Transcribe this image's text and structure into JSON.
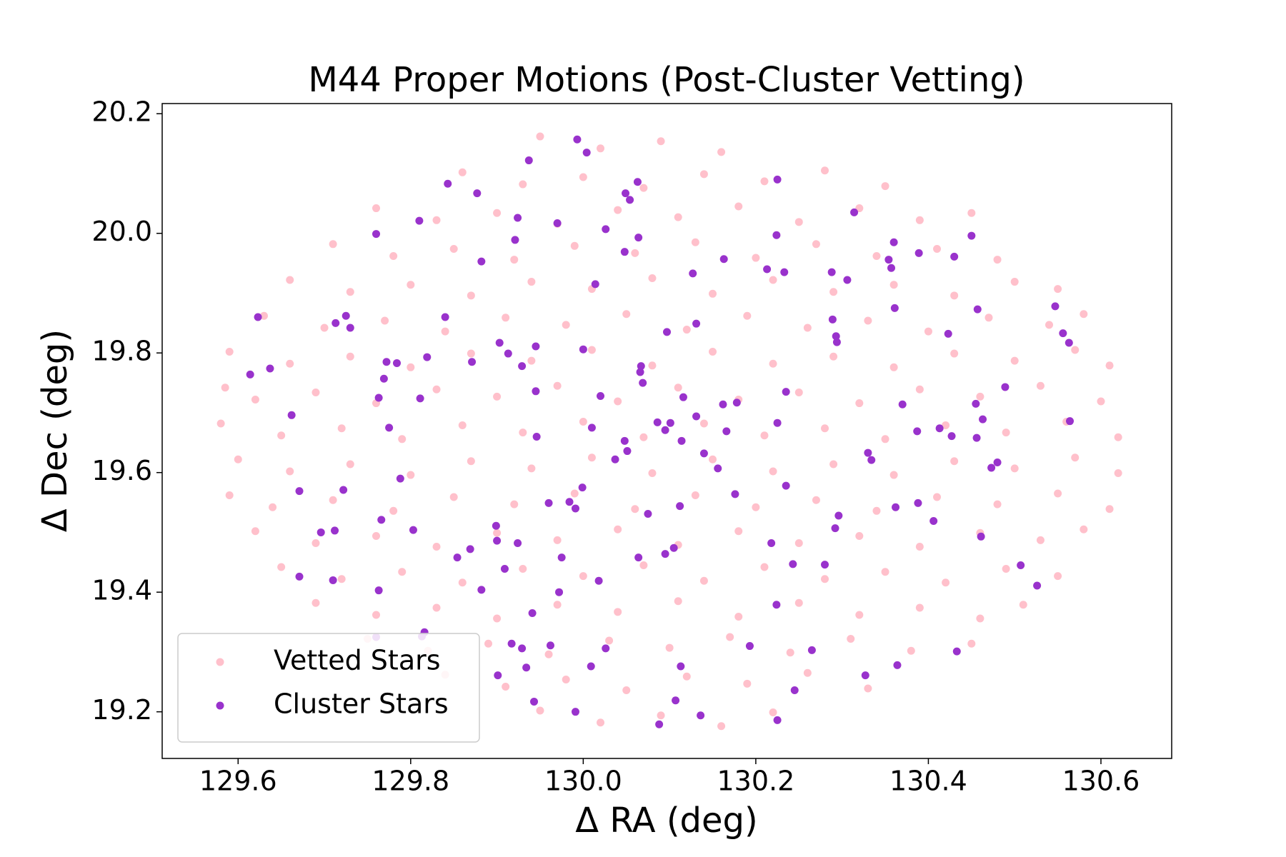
{
  "chart_data": {
    "type": "scatter",
    "title": "M44 Proper Motions (Post-Cluster Vetting)",
    "xlabel": "Δ RA (deg)",
    "ylabel": "Δ Dec (deg)",
    "xlim": [
      129.512,
      130.682
    ],
    "ylim": [
      19.122,
      20.217
    ],
    "xticks": [
      129.6,
      129.8,
      {
        "value": 130,
        "label": "130.0"
      },
      130.2,
      130.4,
      130.6
    ],
    "yticks": [
      19.2,
      19.4,
      19.6,
      19.8,
      {
        "value": 20,
        "label": "20.0"
      },
      20.2
    ],
    "legend": "lower left",
    "grid": false,
    "series": [
      {
        "name": "Vetted Stars",
        "color": "#ffc0cb",
        "x": [
          129.95,
          130.02,
          130.09,
          130.16,
          129.86,
          129.93,
          130.0,
          130.07,
          130.14,
          130.21,
          130.28,
          130.35,
          129.76,
          129.83,
          129.9,
          129.97,
          130.04,
          130.11,
          130.18,
          130.25,
          130.32,
          130.39,
          130.45,
          129.71,
          129.78,
          129.85,
          129.92,
          129.99,
          130.06,
          130.13,
          130.2,
          130.27,
          130.34,
          130.41,
          130.48,
          129.66,
          129.73,
          129.8,
          129.87,
          129.94,
          130.01,
          130.08,
          130.15,
          130.22,
          130.29,
          130.36,
          130.43,
          130.5,
          130.55,
          129.63,
          129.7,
          129.77,
          129.84,
          129.91,
          129.98,
          130.05,
          130.12,
          130.19,
          130.26,
          130.33,
          130.4,
          130.47,
          130.54,
          130.58,
          129.59,
          129.66,
          129.73,
          129.8,
          129.87,
          129.94,
          130.01,
          130.08,
          130.15,
          130.22,
          130.29,
          130.36,
          130.43,
          130.5,
          130.57,
          130.61,
          129.585,
          129.62,
          129.69,
          129.76,
          129.83,
          129.9,
          129.97,
          130.04,
          130.11,
          130.18,
          130.25,
          130.32,
          130.39,
          130.46,
          130.53,
          130.6,
          129.58,
          129.65,
          129.72,
          129.79,
          129.86,
          129.93,
          130.0,
          130.07,
          130.14,
          130.21,
          130.28,
          130.35,
          130.42,
          130.49,
          130.56,
          130.62,
          129.6,
          129.66,
          129.73,
          129.8,
          129.87,
          129.94,
          130.01,
          130.08,
          130.15,
          130.22,
          130.29,
          130.36,
          130.43,
          130.5,
          130.57,
          130.62,
          129.59,
          129.64,
          129.71,
          129.78,
          129.85,
          129.92,
          129.99,
          130.06,
          130.13,
          130.2,
          130.27,
          130.34,
          130.41,
          130.48,
          130.55,
          130.61,
          129.62,
          129.69,
          129.76,
          129.83,
          129.9,
          129.97,
          130.04,
          130.11,
          130.18,
          130.25,
          130.32,
          130.39,
          130.46,
          130.53,
          130.58,
          129.65,
          129.72,
          129.79,
          129.86,
          129.93,
          130.0,
          130.07,
          130.14,
          130.21,
          130.28,
          130.35,
          130.42,
          130.49,
          130.55,
          129.69,
          129.76,
          129.83,
          129.9,
          129.97,
          130.04,
          130.11,
          130.18,
          130.25,
          130.32,
          130.39,
          130.46,
          130.51,
          129.75,
          129.82,
          129.89,
          129.96,
          130.03,
          130.1,
          130.17,
          130.24,
          130.31,
          130.38,
          130.45,
          129.84,
          129.91,
          129.98,
          130.05,
          130.12,
          130.19,
          130.26,
          130.33,
          129.95,
          130.02,
          130.09,
          130.16,
          130.22
        ],
        "y": [
          20.162,
          20.142,
          20.154,
          20.136,
          20.102,
          20.082,
          20.094,
          20.076,
          20.099,
          20.087,
          20.105,
          20.079,
          20.042,
          20.022,
          20.034,
          20.016,
          20.039,
          20.027,
          20.045,
          20.019,
          20.042,
          20.022,
          20.034,
          19.982,
          19.962,
          19.974,
          19.956,
          19.979,
          19.967,
          19.985,
          19.959,
          19.982,
          19.962,
          19.974,
          19.956,
          19.922,
          19.902,
          19.914,
          19.896,
          19.919,
          19.907,
          19.925,
          19.899,
          19.922,
          19.902,
          19.914,
          19.896,
          19.919,
          19.907,
          19.862,
          19.842,
          19.854,
          19.836,
          19.859,
          19.847,
          19.865,
          19.839,
          19.862,
          19.842,
          19.854,
          19.836,
          19.859,
          19.847,
          19.865,
          19.802,
          19.782,
          19.794,
          19.776,
          19.799,
          19.787,
          19.805,
          19.779,
          19.802,
          19.782,
          19.794,
          19.776,
          19.799,
          19.787,
          19.805,
          19.779,
          19.742,
          19.722,
          19.734,
          19.716,
          19.739,
          19.727,
          19.745,
          19.719,
          19.742,
          19.722,
          19.734,
          19.716,
          19.739,
          19.727,
          19.745,
          19.719,
          19.682,
          19.662,
          19.674,
          19.656,
          19.679,
          19.667,
          19.685,
          19.659,
          19.682,
          19.662,
          19.674,
          19.656,
          19.679,
          19.667,
          19.685,
          19.659,
          19.622,
          19.602,
          19.614,
          19.596,
          19.619,
          19.607,
          19.625,
          19.599,
          19.622,
          19.602,
          19.614,
          19.596,
          19.619,
          19.607,
          19.625,
          19.599,
          19.562,
          19.542,
          19.554,
          19.536,
          19.559,
          19.547,
          19.565,
          19.539,
          19.562,
          19.542,
          19.554,
          19.536,
          19.559,
          19.547,
          19.565,
          19.539,
          19.502,
          19.482,
          19.494,
          19.476,
          19.499,
          19.487,
          19.505,
          19.479,
          19.502,
          19.482,
          19.494,
          19.476,
          19.499,
          19.487,
          19.505,
          19.442,
          19.422,
          19.434,
          19.416,
          19.439,
          19.427,
          19.445,
          19.419,
          19.442,
          19.422,
          19.434,
          19.416,
          19.439,
          19.427,
          19.382,
          19.362,
          19.374,
          19.356,
          19.379,
          19.367,
          19.385,
          19.359,
          19.382,
          19.362,
          19.374,
          19.356,
          19.379,
          19.322,
          19.302,
          19.314,
          19.296,
          19.319,
          19.307,
          19.325,
          19.299,
          19.322,
          19.302,
          19.314,
          19.262,
          19.242,
          19.254,
          19.236,
          19.259,
          19.247,
          19.265,
          19.239,
          19.202,
          19.182,
          19.194,
          19.176,
          19.199
        ]
      },
      {
        "name": "Cluster Stars",
        "color": "#9932cc",
        "x": [
          129.993,
          130.004,
          129.937,
          130.063,
          130.225,
          129.843,
          129.877,
          130.049,
          130.054,
          129.924,
          130.314,
          129.81,
          129.97,
          130.026,
          129.76,
          130.064,
          130.224,
          130.45,
          130.36,
          129.921,
          129.882,
          130.048,
          130.389,
          130.43,
          130.354,
          130.163,
          130.127,
          130.213,
          130.233,
          130.288,
          130.357,
          130.014,
          130.306,
          129.623,
          129.725,
          129.713,
          129.73,
          129.84,
          130.131,
          130.289,
          130.361,
          130.547,
          130.457,
          130.097,
          130.423,
          130.556,
          130.293,
          130.294,
          130.563,
          129.903,
          129.945,
          130.0,
          129.913,
          129.819,
          129.614,
          129.637,
          129.772,
          129.784,
          129.871,
          129.929,
          130.067,
          130.066,
          130.069,
          129.769,
          129.945,
          130.235,
          130.489,
          130.02,
          129.763,
          129.811,
          130.116,
          130.178,
          130.162,
          130.37,
          130.455,
          129.662,
          130.131,
          130.463,
          130.564,
          130.086,
          130.101,
          130.225,
          129.775,
          130.01,
          130.413,
          130.387,
          130.095,
          130.166,
          130.114,
          130.048,
          130.427,
          130.456,
          129.946,
          130.33,
          130.051,
          130.14,
          130.334,
          130.037,
          130.48,
          130.473,
          130.156,
          130.235,
          130.176,
          129.788,
          129.999,
          129.671,
          129.722,
          129.96,
          129.984,
          130.388,
          130.362,
          130.112,
          129.991,
          130.296,
          130.075,
          130.406,
          129.766,
          129.899,
          129.803,
          129.712,
          129.696,
          130.292,
          130.461,
          129.9,
          129.924,
          130.218,
          130.105,
          130.095,
          130.064,
          129.975,
          129.869,
          129.854,
          130.243,
          130.28,
          130.507,
          129.909,
          129.671,
          129.71,
          130.018,
          130.526,
          129.882,
          129.763,
          129.972,
          130.224,
          129.941,
          129.816,
          129.813,
          129.76,
          129.917,
          129.962,
          130.193,
          129.929,
          130.026,
          130.265,
          130.433,
          130.113,
          129.934,
          130.009,
          130.364,
          129.901,
          130.327,
          130.245,
          129.943,
          130.107,
          129.991,
          130.136,
          130.225,
          130.088
        ],
        "y": [
          20.157,
          20.135,
          20.122,
          20.086,
          20.09,
          20.083,
          20.067,
          20.067,
          20.056,
          20.026,
          20.035,
          20.021,
          20.017,
          20.007,
          19.999,
          19.993,
          19.997,
          19.996,
          19.985,
          19.989,
          19.953,
          19.969,
          19.967,
          19.961,
          19.956,
          19.957,
          19.933,
          19.94,
          19.935,
          19.935,
          19.942,
          19.915,
          19.922,
          19.86,
          19.862,
          19.85,
          19.842,
          19.86,
          19.849,
          19.856,
          19.875,
          19.878,
          19.873,
          19.835,
          19.832,
          19.833,
          19.828,
          19.818,
          19.817,
          19.817,
          19.811,
          19.806,
          19.799,
          19.793,
          19.764,
          19.774,
          19.785,
          19.783,
          19.785,
          19.778,
          19.778,
          19.768,
          19.75,
          19.757,
          19.736,
          19.735,
          19.743,
          19.728,
          19.725,
          19.724,
          19.726,
          19.717,
          19.714,
          19.714,
          19.715,
          19.696,
          19.694,
          19.689,
          19.686,
          19.684,
          19.683,
          19.683,
          19.675,
          19.675,
          19.674,
          19.669,
          19.671,
          19.669,
          19.653,
          19.653,
          19.661,
          19.658,
          19.66,
          19.633,
          19.636,
          19.632,
          19.621,
          19.622,
          19.617,
          19.608,
          19.607,
          19.578,
          19.564,
          19.59,
          19.575,
          19.569,
          19.571,
          19.549,
          19.551,
          19.549,
          19.542,
          19.544,
          19.54,
          19.528,
          19.531,
          19.519,
          19.521,
          19.511,
          19.504,
          19.503,
          19.5,
          19.507,
          19.493,
          19.486,
          19.482,
          19.482,
          19.474,
          19.464,
          19.458,
          19.458,
          19.472,
          19.458,
          19.447,
          19.446,
          19.445,
          19.439,
          19.426,
          19.42,
          19.419,
          19.411,
          19.404,
          19.403,
          19.4,
          19.379,
          19.365,
          19.333,
          19.326,
          19.325,
          19.314,
          19.311,
          19.31,
          19.306,
          19.306,
          19.303,
          19.301,
          19.276,
          19.274,
          19.276,
          19.278,
          19.261,
          19.261,
          19.236,
          19.217,
          19.219,
          19.2,
          19.194,
          19.186,
          19.179
        ]
      }
    ]
  }
}
